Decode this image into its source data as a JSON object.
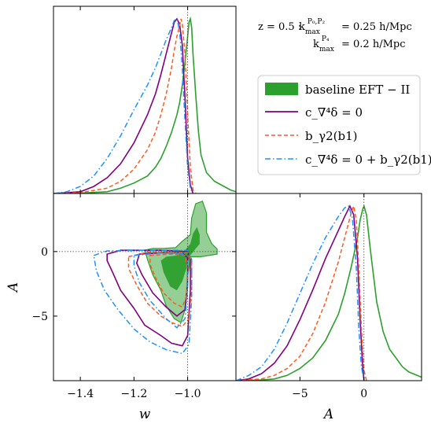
{
  "chart_data": {
    "type": "triangle-corner-plot",
    "annotation": {
      "line1": "z = 0.5 :  k_max^{P0,P2} = 0.25 h/Mpc",
      "line2": "k_max^{P4} = 0.2 h/Mpc",
      "z_text": "z = 0.5 :",
      "k1_text": "= 0.25 h/Mpc",
      "k2_text": "= 0.2 h/Mpc"
    },
    "legend": {
      "position": "right",
      "entries": [
        {
          "label": "baseline EFT − II",
          "style": "filled-patch",
          "color": "#2ca02c"
        },
        {
          "label": "c_∇⁴δ = 0",
          "style": "solid",
          "color": "#800080"
        },
        {
          "label": "b_γ2(b1)",
          "style": "dashed",
          "color": "#ff5a1f"
        },
        {
          "label": "c_∇⁴δ = 0 + b_γ2(b1)",
          "style": "dashdot",
          "color": "#1e90ff"
        }
      ]
    },
    "axes": {
      "w": {
        "label": "w",
        "ticks": [
          -1.4,
          -1.2,
          -1.0
        ],
        "tick_labels": [
          "−1.4",
          "−1.2",
          "−1.0"
        ],
        "range": [
          -1.5,
          -0.82
        ]
      },
      "A": {
        "label": "A",
        "ticks": [
          -5,
          0
        ],
        "tick_labels": [
          "−5",
          "0"
        ],
        "range": [
          -10,
          4.5
        ]
      }
    },
    "reference_lines": {
      "w": -1.0,
      "A": 0
    },
    "series": [
      {
        "name": "baseline EFT − II",
        "color": "#2ca02c",
        "w_pdf": [
          [
            -1.5,
            0
          ],
          [
            -1.4,
            0.002
          ],
          [
            -1.3,
            0.01
          ],
          [
            -1.25,
            0.03
          ],
          [
            -1.2,
            0.06
          ],
          [
            -1.15,
            0.1
          ],
          [
            -1.12,
            0.15
          ],
          [
            -1.1,
            0.2
          ],
          [
            -1.08,
            0.27
          ],
          [
            -1.06,
            0.35
          ],
          [
            -1.04,
            0.45
          ],
          [
            -1.03,
            0.52
          ],
          [
            -1.02,
            0.62
          ],
          [
            -1.01,
            0.75
          ],
          [
            -1.0,
            0.9
          ],
          [
            -0.995,
            0.98
          ],
          [
            -0.99,
            1.0
          ],
          [
            -0.985,
            0.95
          ],
          [
            -0.98,
            0.8
          ],
          [
            -0.97,
            0.57
          ],
          [
            -0.96,
            0.36
          ],
          [
            -0.95,
            0.22
          ],
          [
            -0.93,
            0.12
          ],
          [
            -0.9,
            0.07
          ],
          [
            -0.87,
            0.045
          ],
          [
            -0.84,
            0.02
          ],
          [
            -0.82,
            0.01
          ]
        ],
        "A_pdf": [
          [
            -10,
            0
          ],
          [
            -8,
            0.004
          ],
          [
            -7,
            0.01
          ],
          [
            -6,
            0.03
          ],
          [
            -5,
            0.07
          ],
          [
            -4,
            0.13
          ],
          [
            -3,
            0.23
          ],
          [
            -2,
            0.38
          ],
          [
            -1.5,
            0.5
          ],
          [
            -1,
            0.65
          ],
          [
            -0.5,
            0.82
          ],
          [
            -0.3,
            0.92
          ],
          [
            -0.1,
            0.98
          ],
          [
            0,
            1.0
          ],
          [
            0.2,
            0.95
          ],
          [
            0.5,
            0.75
          ],
          [
            1,
            0.45
          ],
          [
            1.5,
            0.28
          ],
          [
            2,
            0.18
          ],
          [
            3,
            0.08
          ],
          [
            3.5,
            0.05
          ],
          [
            4.5,
            0.02
          ]
        ],
        "contour_95": [
          [
            -1.045,
            0.3
          ],
          [
            -1.02,
            0.8
          ],
          [
            -0.99,
            1.3
          ],
          [
            -0.985,
            2.6
          ],
          [
            -0.97,
            3.7
          ],
          [
            -0.945,
            3.9
          ],
          [
            -0.93,
            3.0
          ],
          [
            -0.93,
            1.5
          ],
          [
            -0.91,
            0.6
          ],
          [
            -0.89,
            0.2
          ],
          [
            -0.89,
            -0.2
          ],
          [
            -0.95,
            -0.4
          ],
          [
            -0.99,
            -0.4
          ],
          [
            -1.0,
            -2.0
          ],
          [
            -1.01,
            -4.5
          ],
          [
            -1.025,
            -5.5
          ],
          [
            -1.05,
            -5.2
          ],
          [
            -1.08,
            -4.2
          ],
          [
            -1.1,
            -3.0
          ],
          [
            -1.13,
            -1.8
          ],
          [
            -1.15,
            -0.6
          ],
          [
            -1.16,
            0.1
          ],
          [
            -1.13,
            0.25
          ],
          [
            -1.09,
            0.25
          ]
        ],
        "contour_68": [
          [
            -1.01,
            0.1
          ],
          [
            -0.99,
            0.6
          ],
          [
            -0.98,
            1.4
          ],
          [
            -0.965,
            1.9
          ],
          [
            -0.955,
            1.3
          ],
          [
            -0.955,
            0.6
          ],
          [
            -0.975,
            0.1
          ],
          [
            -0.99,
            -0.3
          ],
          [
            -1.0,
            -1.0
          ],
          [
            -1.02,
            -2.3
          ],
          [
            -1.04,
            -3.0
          ],
          [
            -1.065,
            -2.7
          ],
          [
            -1.09,
            -1.6
          ],
          [
            -1.1,
            -0.7
          ],
          [
            -1.08,
            -0.4
          ],
          [
            -1.04,
            -0.3
          ]
        ]
      },
      {
        "name": "c_∇⁴δ = 0",
        "color": "#800080",
        "w_pdf": [
          [
            -1.5,
            0
          ],
          [
            -1.4,
            0.01
          ],
          [
            -1.35,
            0.04
          ],
          [
            -1.3,
            0.09
          ],
          [
            -1.25,
            0.17
          ],
          [
            -1.2,
            0.29
          ],
          [
            -1.15,
            0.45
          ],
          [
            -1.12,
            0.57
          ],
          [
            -1.1,
            0.68
          ],
          [
            -1.08,
            0.8
          ],
          [
            -1.06,
            0.92
          ],
          [
            -1.05,
            0.98
          ],
          [
            -1.04,
            1.0
          ],
          [
            -1.03,
            0.97
          ],
          [
            -1.02,
            0.85
          ],
          [
            -1.01,
            0.55
          ],
          [
            -1.0,
            0.2
          ],
          [
            -0.99,
            0.05
          ],
          [
            -0.98,
            0.0
          ]
        ],
        "A_pdf": [
          [
            -10,
            0
          ],
          [
            -9,
            0.01
          ],
          [
            -8,
            0.04
          ],
          [
            -7,
            0.1
          ],
          [
            -6,
            0.2
          ],
          [
            -5,
            0.35
          ],
          [
            -4,
            0.52
          ],
          [
            -3,
            0.7
          ],
          [
            -2,
            0.86
          ],
          [
            -1.5,
            0.94
          ],
          [
            -1.1,
            1.0
          ],
          [
            -0.8,
            0.95
          ],
          [
            -0.5,
            0.7
          ],
          [
            -0.3,
            0.35
          ],
          [
            -0.1,
            0.08
          ],
          [
            0,
            0.0
          ]
        ],
        "contour_95": [
          [
            -1.3,
            -0.2
          ],
          [
            -1.25,
            0.1
          ],
          [
            -1.1,
            0.1
          ],
          [
            -1.0,
            0.0
          ],
          [
            -0.99,
            -0.6
          ],
          [
            -0.99,
            -3.0
          ],
          [
            -1.0,
            -6.5
          ],
          [
            -1.02,
            -7.3
          ],
          [
            -1.06,
            -7.1
          ],
          [
            -1.1,
            -6.5
          ],
          [
            -1.16,
            -5.7
          ],
          [
            -1.2,
            -4.4
          ],
          [
            -1.25,
            -3.0
          ],
          [
            -1.28,
            -1.6
          ],
          [
            -1.3,
            -0.7
          ]
        ],
        "contour_68": [
          [
            -1.18,
            -0.2
          ],
          [
            -1.1,
            -0.1
          ],
          [
            -1.02,
            -0.1
          ],
          [
            -1.0,
            -0.5
          ],
          [
            -1.0,
            -2.5
          ],
          [
            -1.01,
            -4.5
          ],
          [
            -1.04,
            -5.0
          ],
          [
            -1.08,
            -4.3
          ],
          [
            -1.13,
            -3.2
          ],
          [
            -1.17,
            -1.8
          ],
          [
            -1.19,
            -0.9
          ]
        ]
      },
      {
        "name": "b_γ2(b1)",
        "color": "#ff5a1f",
        "w_pdf": [
          [
            -1.5,
            0
          ],
          [
            -1.4,
            0.005
          ],
          [
            -1.3,
            0.03
          ],
          [
            -1.25,
            0.07
          ],
          [
            -1.2,
            0.14
          ],
          [
            -1.15,
            0.25
          ],
          [
            -1.12,
            0.35
          ],
          [
            -1.1,
            0.45
          ],
          [
            -1.08,
            0.57
          ],
          [
            -1.06,
            0.72
          ],
          [
            -1.05,
            0.82
          ],
          [
            -1.04,
            0.9
          ],
          [
            -1.03,
            0.96
          ],
          [
            -1.025,
            1.0
          ],
          [
            -1.02,
            0.97
          ],
          [
            -1.01,
            0.8
          ],
          [
            -1.0,
            0.45
          ],
          [
            -0.99,
            0.15
          ],
          [
            -0.98,
            0.02
          ],
          [
            -0.97,
            0.0
          ]
        ],
        "A_pdf": [
          [
            -10,
            0
          ],
          [
            -8,
            0.01
          ],
          [
            -7,
            0.03
          ],
          [
            -6,
            0.07
          ],
          [
            -5,
            0.14
          ],
          [
            -4,
            0.27
          ],
          [
            -3,
            0.45
          ],
          [
            -2,
            0.68
          ],
          [
            -1.5,
            0.82
          ],
          [
            -1,
            0.96
          ],
          [
            -0.8,
            1.0
          ],
          [
            -0.6,
            0.92
          ],
          [
            -0.4,
            0.65
          ],
          [
            -0.2,
            0.3
          ],
          [
            0,
            0.06
          ],
          [
            0.2,
            0.0
          ]
        ],
        "contour_95": [
          [
            -1.22,
            -0.4
          ],
          [
            -1.15,
            -0.05
          ],
          [
            -1.0,
            -0.05
          ],
          [
            -0.985,
            -0.8
          ],
          [
            -0.985,
            -3.0
          ],
          [
            -0.995,
            -5.2
          ],
          [
            -1.02,
            -5.8
          ],
          [
            -1.06,
            -5.5
          ],
          [
            -1.1,
            -5.0
          ],
          [
            -1.15,
            -4.0
          ],
          [
            -1.19,
            -2.6
          ],
          [
            -1.22,
            -1.3
          ]
        ],
        "contour_68": [
          [
            -1.14,
            -0.3
          ],
          [
            -1.06,
            -0.2
          ],
          [
            -1.01,
            -0.3
          ],
          [
            -1.0,
            -1.5
          ],
          [
            -1.005,
            -3.5
          ],
          [
            -1.02,
            -4.3
          ],
          [
            -1.05,
            -4.0
          ],
          [
            -1.09,
            -3.2
          ],
          [
            -1.12,
            -2.0
          ],
          [
            -1.14,
            -1.0
          ]
        ]
      },
      {
        "name": "c_∇⁴δ = 0 + b_γ2(b1)",
        "color": "#1e90ff",
        "w_pdf": [
          [
            -1.5,
            0
          ],
          [
            -1.45,
            0.01
          ],
          [
            -1.4,
            0.04
          ],
          [
            -1.35,
            0.1
          ],
          [
            -1.3,
            0.2
          ],
          [
            -1.25,
            0.33
          ],
          [
            -1.2,
            0.48
          ],
          [
            -1.15,
            0.62
          ],
          [
            -1.12,
            0.72
          ],
          [
            -1.1,
            0.8
          ],
          [
            -1.08,
            0.88
          ],
          [
            -1.06,
            0.95
          ],
          [
            -1.05,
            0.99
          ],
          [
            -1.04,
            1.0
          ],
          [
            -1.03,
            0.93
          ],
          [
            -1.02,
            0.72
          ],
          [
            -1.01,
            0.42
          ],
          [
            -1.0,
            0.15
          ],
          [
            -0.99,
            0.03
          ],
          [
            -0.98,
            0.0
          ]
        ],
        "A_pdf": [
          [
            -10,
            0
          ],
          [
            -9,
            0.03
          ],
          [
            -8,
            0.08
          ],
          [
            -7,
            0.18
          ],
          [
            -6,
            0.33
          ],
          [
            -5,
            0.5
          ],
          [
            -4,
            0.67
          ],
          [
            -3,
            0.82
          ],
          [
            -2,
            0.94
          ],
          [
            -1.5,
            0.99
          ],
          [
            -1.2,
            1.0
          ],
          [
            -0.9,
            0.93
          ],
          [
            -0.6,
            0.65
          ],
          [
            -0.4,
            0.3
          ],
          [
            -0.2,
            0.08
          ],
          [
            0,
            0.0
          ]
        ],
        "contour_95": [
          [
            -1.35,
            -0.3
          ],
          [
            -1.3,
            0.05
          ],
          [
            -1.15,
            0.1
          ],
          [
            -1.0,
            0.1
          ],
          [
            -0.985,
            -0.6
          ],
          [
            -0.985,
            -3.5
          ],
          [
            -0.995,
            -7.2
          ],
          [
            -1.02,
            -7.9
          ],
          [
            -1.08,
            -7.6
          ],
          [
            -1.14,
            -7.0
          ],
          [
            -1.2,
            -6.0
          ],
          [
            -1.26,
            -4.5
          ],
          [
            -1.31,
            -3.0
          ],
          [
            -1.34,
            -1.5
          ]
        ],
        "contour_68": [
          [
            -1.2,
            -0.3
          ],
          [
            -1.1,
            -0.1
          ],
          [
            -1.02,
            -0.15
          ],
          [
            -1.0,
            -0.6
          ],
          [
            -1.0,
            -3.0
          ],
          [
            -1.01,
            -5.2
          ],
          [
            -1.04,
            -5.9
          ],
          [
            -1.08,
            -5.2
          ],
          [
            -1.14,
            -3.8
          ],
          [
            -1.18,
            -2.4
          ],
          [
            -1.2,
            -1.1
          ]
        ]
      }
    ]
  }
}
